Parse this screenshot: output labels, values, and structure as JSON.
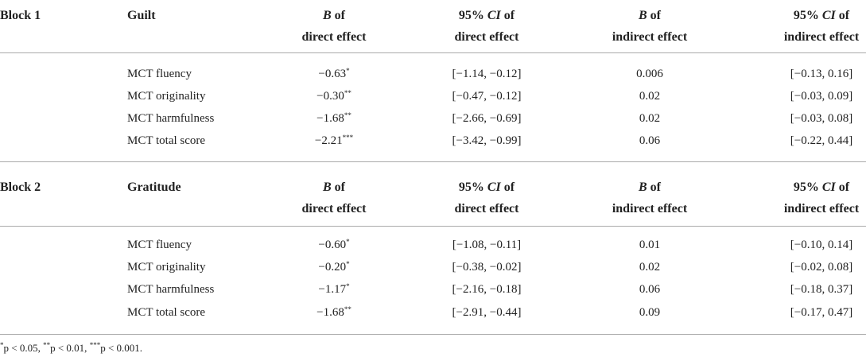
{
  "blocks": [
    {
      "label": "Block 1",
      "factor": "Guilt",
      "headers": [
        {
          "line1": [
            {
              "text": "B",
              "italic": true
            },
            {
              "text": " of"
            }
          ],
          "line2": "direct effect"
        },
        {
          "line1": [
            {
              "text": "95% "
            },
            {
              "text": "CI",
              "italic": true
            },
            {
              "text": " of"
            }
          ],
          "line2": "direct effect"
        },
        {
          "line1": [
            {
              "text": "B",
              "italic": true
            },
            {
              "text": " of"
            }
          ],
          "line2": "indirect effect"
        },
        {
          "line1": [
            {
              "text": "95% "
            },
            {
              "text": "CI",
              "italic": true
            },
            {
              "text": " of"
            }
          ],
          "line2": "indirect effect"
        }
      ],
      "rows": [
        {
          "measure": "MCT fluency",
          "direct_b": {
            "value": "−0.63",
            "sig": "*"
          },
          "direct_ci": "[−1.14, −0.12]",
          "indirect_b": "0.006",
          "indirect_ci": "[−0.13, 0.16]"
        },
        {
          "measure": "MCT originality",
          "direct_b": {
            "value": "−0.30",
            "sig": "**"
          },
          "direct_ci": "[−0.47, −0.12]",
          "indirect_b": "0.02",
          "indirect_ci": "[−0.03, 0.09]"
        },
        {
          "measure": "MCT harmfulness",
          "direct_b": {
            "value": "−1.68",
            "sig": "**"
          },
          "direct_ci": "[−2.66, −0.69]",
          "indirect_b": "0.02",
          "indirect_ci": "[−0.03, 0.08]"
        },
        {
          "measure": "MCT total score",
          "direct_b": {
            "value": "−2.21",
            "sig": "***"
          },
          "direct_ci": "[−3.42, −0.99]",
          "indirect_b": "0.06",
          "indirect_ci": "[−0.22, 0.44]"
        }
      ]
    },
    {
      "label": "Block 2",
      "factor": "Gratitude",
      "headers": [
        {
          "line1": [
            {
              "text": "B",
              "italic": true
            },
            {
              "text": " of"
            }
          ],
          "line2": "direct effect"
        },
        {
          "line1": [
            {
              "text": "95% "
            },
            {
              "text": "CI",
              "italic": true
            },
            {
              "text": " of"
            }
          ],
          "line2": "direct effect"
        },
        {
          "line1": [
            {
              "text": "B",
              "italic": true
            },
            {
              "text": " of"
            }
          ],
          "line2": "indirect effect"
        },
        {
          "line1": [
            {
              "text": "95% "
            },
            {
              "text": "CI",
              "italic": true
            },
            {
              "text": " of"
            }
          ],
          "line2": "indirect effect"
        }
      ],
      "rows": [
        {
          "measure": "MCT fluency",
          "direct_b": {
            "value": "−0.60",
            "sig": "*"
          },
          "direct_ci": "[−1.08, −0.11]",
          "indirect_b": "0.01",
          "indirect_ci": "[−0.10, 0.14]"
        },
        {
          "measure": "MCT originality",
          "direct_b": {
            "value": "−0.20",
            "sig": "*"
          },
          "direct_ci": "[−0.38, −0.02]",
          "indirect_b": "0.02",
          "indirect_ci": "[−0.02, 0.08]"
        },
        {
          "measure": "MCT harmfulness",
          "direct_b": {
            "value": "−1.17",
            "sig": "*"
          },
          "direct_ci": "[−2.16, −0.18]",
          "indirect_b": "0.06",
          "indirect_ci": "[−0.18, 0.37]"
        },
        {
          "measure": "MCT total score",
          "direct_b": {
            "value": "−1.68",
            "sig": "**"
          },
          "direct_ci": "[−2.91, −0.44]",
          "indirect_b": "0.09",
          "indirect_ci": "[−0.17, 0.47]"
        }
      ]
    }
  ],
  "footnote": [
    {
      "sup": "*",
      "text": "p < 0.05, "
    },
    {
      "sup": "**",
      "text": "p < 0.01, "
    },
    {
      "sup": "***",
      "text": "p < 0.001."
    }
  ]
}
